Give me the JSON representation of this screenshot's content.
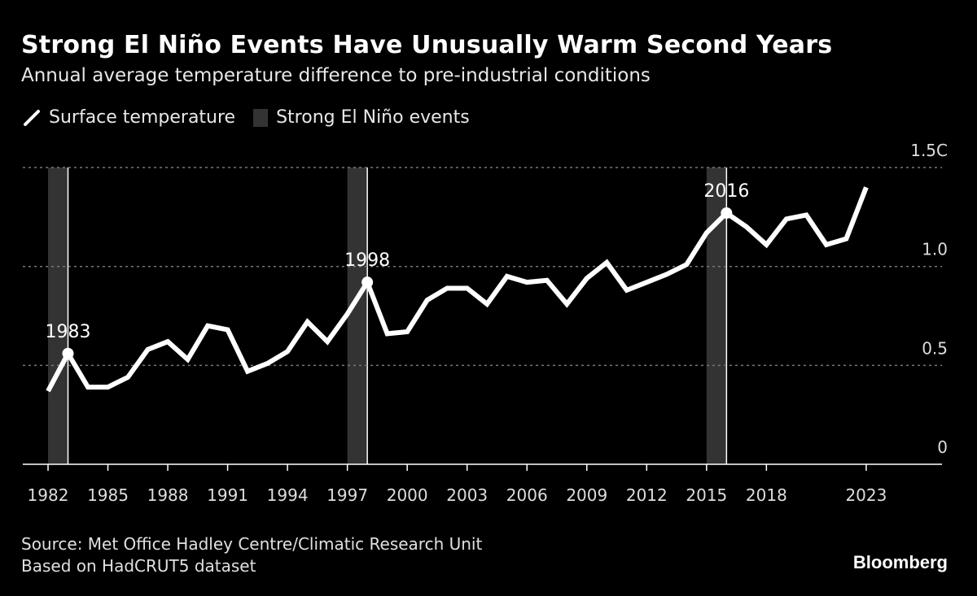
{
  "chart_data": {
    "type": "line",
    "title": "Strong El Niño Events Have Unusually Warm Second Years",
    "subtitle": "Annual average temperature difference to pre-industrial conditions",
    "legend": [
      {
        "name": "Surface temperature",
        "kind": "line",
        "color": "#ffffff"
      },
      {
        "name": "Strong El Niño events",
        "kind": "band",
        "color": "#333333"
      }
    ],
    "legend_placement": "top-left",
    "x": [
      1982,
      1983,
      1984,
      1985,
      1986,
      1987,
      1988,
      1989,
      1990,
      1991,
      1992,
      1993,
      1994,
      1995,
      1996,
      1997,
      1998,
      1999,
      2000,
      2001,
      2002,
      2003,
      2004,
      2005,
      2006,
      2007,
      2008,
      2009,
      2010,
      2011,
      2012,
      2013,
      2014,
      2015,
      2016,
      2017,
      2018,
      2019,
      2020,
      2021,
      2022,
      2023
    ],
    "series": [
      {
        "name": "Surface temperature",
        "values": [
          0.37,
          0.56,
          0.39,
          0.39,
          0.44,
          0.58,
          0.62,
          0.53,
          0.7,
          0.68,
          0.47,
          0.51,
          0.57,
          0.72,
          0.62,
          0.76,
          0.92,
          0.66,
          0.67,
          0.83,
          0.89,
          0.89,
          0.81,
          0.95,
          0.92,
          0.93,
          0.81,
          0.94,
          1.02,
          0.88,
          0.92,
          0.96,
          1.01,
          1.17,
          1.27,
          1.2,
          1.11,
          1.24,
          1.26,
          1.11,
          1.14,
          1.4
        ]
      }
    ],
    "events": [
      {
        "start": 1982,
        "end": 1983,
        "label": "1983"
      },
      {
        "start": 1997,
        "end": 1998,
        "label": "1998"
      },
      {
        "start": 2015,
        "end": 2016,
        "label": "2016"
      }
    ],
    "xlim": [
      1980.8,
      2027
    ],
    "ylim": [
      0,
      1.5
    ],
    "xticks": [
      1982,
      1985,
      1988,
      1991,
      1994,
      1997,
      2000,
      2003,
      2006,
      2009,
      2012,
      2015,
      2018,
      2023
    ],
    "yticks": [
      {
        "v": 0,
        "label": "0"
      },
      {
        "v": 0.5,
        "label": "0.5"
      },
      {
        "v": 1.0,
        "label": "1.0"
      },
      {
        "v": 1.5,
        "label": "1.5C"
      }
    ],
    "grid": "horizontal dotted",
    "axis_position": "right"
  },
  "footer": {
    "source": "Source: Met Office Hadley Centre/Climatic Research Unit",
    "note": "Based on HadCRUT5 dataset",
    "logo": "Bloomberg"
  }
}
